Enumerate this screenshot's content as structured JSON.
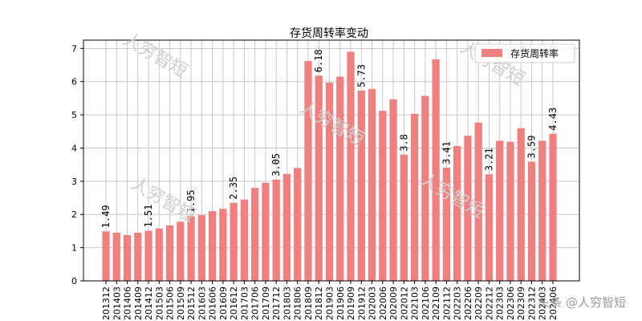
{
  "chart_data": {
    "type": "bar",
    "title": "存货周转率变动",
    "xlabel": "",
    "ylabel": "",
    "ylim": [
      0,
      7.25
    ],
    "yticks": [
      0,
      1,
      2,
      3,
      4,
      5,
      6,
      7
    ],
    "grid": true,
    "legend_position": "top-right",
    "categories": [
      "201312",
      "201403",
      "201406",
      "201409",
      "201412",
      "201503",
      "201506",
      "201509",
      "201512",
      "201603",
      "201606",
      "201609",
      "201612",
      "201703",
      "201706",
      "201709",
      "201712",
      "201803",
      "201806",
      "201809",
      "201812",
      "201903",
      "201906",
      "201909",
      "201912",
      "202003",
      "202006",
      "202009",
      "202012",
      "202103",
      "202106",
      "202109",
      "202112",
      "202203",
      "202206",
      "202209",
      "202212",
      "202303",
      "202306",
      "202309",
      "202312",
      "202403",
      "202406"
    ],
    "series": [
      {
        "name": "存货周转率",
        "color": "#f08080",
        "values": [
          1.49,
          1.45,
          1.38,
          1.45,
          1.51,
          1.58,
          1.67,
          1.78,
          1.95,
          1.98,
          2.1,
          2.17,
          2.35,
          2.45,
          2.8,
          2.95,
          3.05,
          3.22,
          3.4,
          6.62,
          6.18,
          5.97,
          6.15,
          6.9,
          5.73,
          5.78,
          5.12,
          5.47,
          3.8,
          5.03,
          5.57,
          6.67,
          3.41,
          4.06,
          4.37,
          4.77,
          3.21,
          4.22,
          4.19,
          4.6,
          3.59,
          4.22,
          4.43
        ],
        "data_labels": {
          "0": "1.49",
          "4": "1.51",
          "8": "1.95",
          "12": "2.35",
          "16": "3.05",
          "20": "6.18",
          "24": "5.73",
          "28": "3.8",
          "32": "3.41",
          "36": "3.21",
          "40": "3.59",
          "42": "4.43"
        }
      }
    ]
  },
  "watermark": {
    "text": "人穷智短",
    "corner_text": "头条 @人穷智短"
  }
}
